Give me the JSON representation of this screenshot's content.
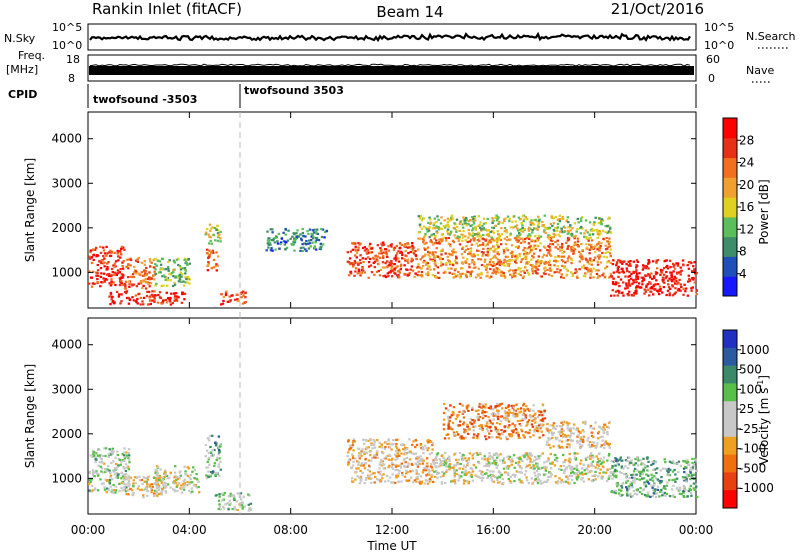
{
  "header": {
    "site": "Rankin Inlet (fitACF)",
    "beam": "Beam 14",
    "date": "21/Oct/2016"
  },
  "strip_labels": {
    "nsky": "N.Sky",
    "nsearch": "N.Search",
    "freq_line1": "Freq.",
    "freq_line2": "[MHz]",
    "nave": "Nave",
    "cpid": "CPID",
    "nsky_ticks": [
      "10^5",
      "10^0"
    ],
    "nsearch_ticks": [
      "10^5",
      "10^0"
    ],
    "freq_ticks": [
      "18",
      "8"
    ],
    "nave_ticks": [
      "60",
      "0"
    ],
    "cpid_segments": [
      "twofsound -3503",
      "twofsound 3503"
    ]
  },
  "axes": {
    "ylabel": "Slant Range [km]",
    "xlabel": "Time UT",
    "yticks": [
      "1000",
      "2000",
      "3000",
      "4000"
    ],
    "xticks": [
      "00:00",
      "04:00",
      "08:00",
      "12:00",
      "16:00",
      "20:00",
      "00:00"
    ]
  },
  "colorbars": {
    "power": {
      "label": "Power [dB]",
      "ticks": [
        "4",
        "8",
        "12",
        "16",
        "20",
        "24",
        "28"
      ],
      "colors": [
        "#1818ff",
        "#1f4fb8",
        "#3d8c6a",
        "#5abf5a",
        "#e0d020",
        "#f0a030",
        "#f07020",
        "#e83018",
        "#ff0000"
      ]
    },
    "velocity": {
      "label": "Velocity [m s",
      "label_sup": "-1",
      "label_close": "]",
      "ticks": [
        "1000",
        "500",
        "100",
        "25",
        "-25",
        "-100",
        "-500",
        "-1000"
      ],
      "colors": [
        "#2030c0",
        "#2a5aa0",
        "#3a8a6a",
        "#58c048",
        "#c8c8c8",
        "#c8c8c8",
        "#f0a020",
        "#f07010",
        "#e84010",
        "#ff0000"
      ]
    }
  },
  "chart_data": [
    {
      "type": "heatmap",
      "title": "",
      "ylabel": "Slant Range [km]",
      "xlabel": "",
      "xlim": [
        0,
        24
      ],
      "ylim": [
        200,
        4600
      ],
      "value_label": "Power [dB]",
      "value_range": [
        0,
        30
      ],
      "regions": [
        {
          "x": [
            0.0,
            1.4
          ],
          "y": [
            700,
            1600
          ],
          "value": 26
        },
        {
          "x": [
            1.4,
            2.6
          ],
          "y": [
            650,
            1350
          ],
          "value": 22
        },
        {
          "x": [
            2.6,
            4.0
          ],
          "y": [
            700,
            1350
          ],
          "value": 12
        },
        {
          "x": [
            0.8,
            3.8
          ],
          "y": [
            300,
            600
          ],
          "value": 27
        },
        {
          "x": [
            5.2,
            6.2
          ],
          "y": [
            300,
            600
          ],
          "value": 24
        },
        {
          "x": [
            4.6,
            5.1
          ],
          "y": [
            1050,
            1550
          ],
          "value": 23
        },
        {
          "x": [
            4.6,
            5.2
          ],
          "y": [
            1650,
            2100
          ],
          "value": 14
        },
        {
          "x": [
            10.2,
            13.0
          ],
          "y": [
            900,
            1700
          ],
          "value": 24
        },
        {
          "x": [
            13.0,
            20.6
          ],
          "y": [
            900,
            1800
          ],
          "value": 20
        },
        {
          "x": [
            13.0,
            20.6
          ],
          "y": [
            1800,
            2300
          ],
          "value": 14
        },
        {
          "x": [
            20.6,
            24.0
          ],
          "y": [
            500,
            1300
          ],
          "value": 28
        },
        {
          "x": [
            7.0,
            9.4
          ],
          "y": [
            1500,
            2000
          ],
          "value": 8
        }
      ]
    },
    {
      "type": "heatmap",
      "title": "",
      "ylabel": "Slant Range [km]",
      "xlabel": "Time UT",
      "xlim": [
        0,
        24
      ],
      "ylim": [
        200,
        4600
      ],
      "value_label": "Velocity [m s-1]",
      "value_range": [
        -1000,
        1000
      ],
      "regions": [
        {
          "x": [
            0.0,
            1.6
          ],
          "y": [
            700,
            1700
          ],
          "value": 100
        },
        {
          "x": [
            1.4,
            3.0
          ],
          "y": [
            600,
            1100
          ],
          "value": -100
        },
        {
          "x": [
            2.6,
            4.4
          ],
          "y": [
            700,
            1300
          ],
          "value": 0
        },
        {
          "x": [
            4.6,
            5.2
          ],
          "y": [
            1000,
            2000
          ],
          "value": 300
        },
        {
          "x": [
            5.0,
            6.4
          ],
          "y": [
            300,
            700
          ],
          "value": 100
        },
        {
          "x": [
            10.2,
            13.6
          ],
          "y": [
            900,
            1900
          ],
          "value": -200
        },
        {
          "x": [
            13.6,
            20.6
          ],
          "y": [
            900,
            1600
          ],
          "value": 0
        },
        {
          "x": [
            14.0,
            18.0
          ],
          "y": [
            1900,
            2700
          ],
          "value": -400
        },
        {
          "x": [
            18.0,
            20.6
          ],
          "y": [
            1700,
            2300
          ],
          "value": -150
        },
        {
          "x": [
            20.6,
            24.0
          ],
          "y": [
            600,
            1500
          ],
          "value": 300
        }
      ]
    }
  ]
}
